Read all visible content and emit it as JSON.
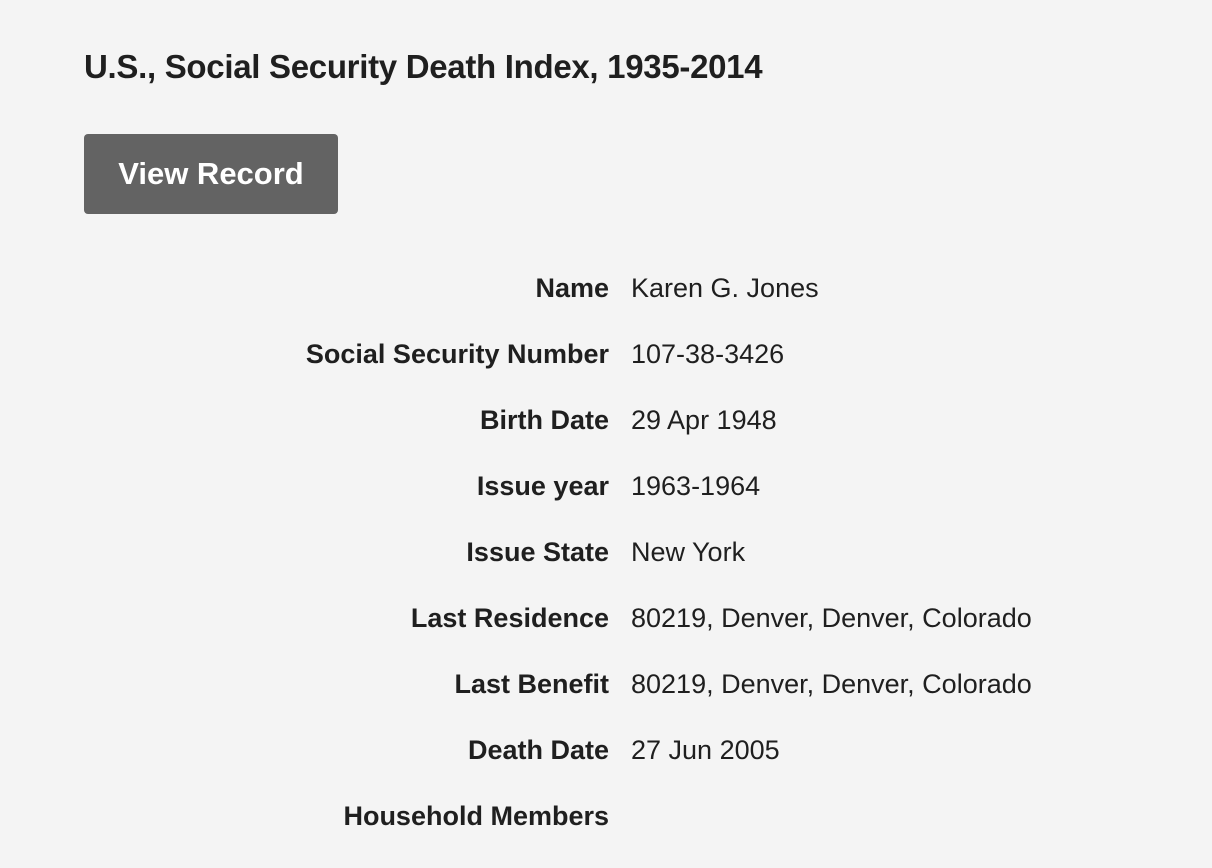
{
  "header": {
    "title": "U.S., Social Security Death Index, 1935-2014"
  },
  "actions": {
    "view_record": "View Record"
  },
  "colors": {
    "background": "#f4f4f4",
    "button": "#636363",
    "text": "#1f1f1f"
  },
  "fields": [
    {
      "label": "Name",
      "value": "Karen G. Jones"
    },
    {
      "label": "Social Security Number",
      "value": "107-38-3426"
    },
    {
      "label": "Birth Date",
      "value": "29 Apr 1948"
    },
    {
      "label": "Issue year",
      "value": "1963-1964"
    },
    {
      "label": "Issue State",
      "value": "New York"
    },
    {
      "label": "Last Residence",
      "value": "80219, Denver, Denver, Colorado"
    },
    {
      "label": "Last Benefit",
      "value": "80219, Denver, Denver, Colorado"
    },
    {
      "label": "Death Date",
      "value": "27 Jun 2005"
    },
    {
      "label": "Household Members",
      "value": ""
    }
  ]
}
